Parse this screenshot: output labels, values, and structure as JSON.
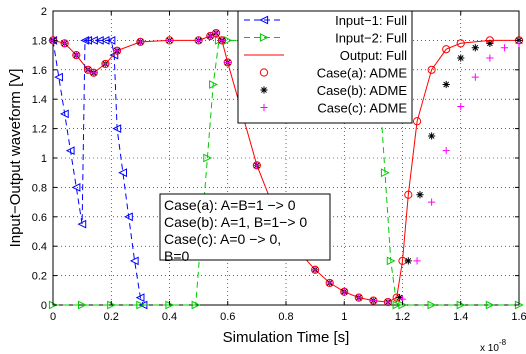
{
  "chart_data": {
    "type": "line",
    "xlabel": "Simulation Time [s]",
    "ylabel": "Input−Output waveform [V]",
    "x_multiplier": "x 10",
    "x_multiplier_exp": "-8",
    "xlim": [
      0,
      1.6
    ],
    "ylim": [
      0,
      2
    ],
    "grid": true,
    "xticks": [
      0,
      0.2,
      0.4,
      0.6,
      0.8,
      1,
      1.2,
      1.4,
      1.6
    ],
    "xtick_labels": [
      "0",
      "0.2",
      "0.4",
      "0.6",
      "0.8",
      "1",
      "1.2",
      "1.4",
      "1.6"
    ],
    "yticks": [
      0,
      0.2,
      0.4,
      0.6,
      0.8,
      1,
      1.2,
      1.4,
      1.6,
      1.8,
      2
    ],
    "ytick_labels": [
      "0",
      "0.2",
      "0.4",
      "0.6",
      "0.8",
      "1",
      "1.2",
      "1.4",
      "1.6",
      "1.8",
      "2"
    ],
    "legend_position": "top-right",
    "series": [
      {
        "name": "Input−1: Full",
        "color": "#0000ff",
        "style": "dashed",
        "marker": "triangle-left",
        "x": [
          0,
          0.02,
          0.04,
          0.06,
          0.08,
          0.1,
          0.11,
          0.12,
          0.14,
          0.16,
          0.18,
          0.2,
          0.21,
          0.22,
          0.24,
          0.26,
          0.28,
          0.3,
          0.31
        ],
        "y": [
          1.8,
          1.55,
          1.3,
          1.05,
          0.8,
          0.55,
          1.8,
          1.8,
          1.8,
          1.8,
          1.8,
          1.8,
          1.7,
          1.2,
          0.9,
          0.6,
          0.3,
          0.05,
          0
        ]
      },
      {
        "name": "Input−2: Full",
        "color": "#00cc00",
        "style": "dashed",
        "marker": "triangle-right",
        "x": [
          0,
          0.1,
          0.2,
          0.3,
          0.4,
          0.49,
          0.51,
          0.53,
          0.55,
          0.57,
          0.6,
          0.7,
          0.8,
          0.9,
          1.0,
          1.1,
          1.12,
          1.14,
          1.16,
          1.18,
          1.2,
          1.3,
          1.4,
          1.5,
          1.6
        ],
        "y": [
          0,
          0,
          0,
          0,
          0,
          0,
          0.5,
          1.0,
          1.5,
          1.8,
          1.8,
          1.8,
          1.8,
          1.8,
          1.8,
          1.8,
          1.5,
          0.9,
          0.3,
          0,
          0,
          0,
          0,
          0,
          0
        ]
      },
      {
        "name": "Output: Full",
        "color": "#ff0000",
        "style": "solid",
        "marker": "none",
        "x": [
          0,
          0.04,
          0.08,
          0.12,
          0.14,
          0.18,
          0.22,
          0.3,
          0.4,
          0.5,
          0.54,
          0.56,
          0.58,
          0.6,
          0.65,
          0.7,
          0.75,
          0.8,
          0.85,
          0.9,
          0.95,
          1.0,
          1.05,
          1.1,
          1.15,
          1.18,
          1.2,
          1.22,
          1.25,
          1.3,
          1.35,
          1.4,
          1.5,
          1.6
        ],
        "y": [
          1.8,
          1.78,
          1.7,
          1.6,
          1.58,
          1.64,
          1.73,
          1.79,
          1.8,
          1.8,
          1.83,
          1.85,
          1.8,
          1.65,
          1.3,
          0.95,
          0.7,
          0.5,
          0.35,
          0.24,
          0.15,
          0.09,
          0.05,
          0.03,
          0.02,
          0.05,
          0.3,
          0.75,
          1.25,
          1.6,
          1.74,
          1.78,
          1.8,
          1.8
        ]
      },
      {
        "name": "Case(a): ADME",
        "color": "#ff0000",
        "style": "none",
        "marker": "circle",
        "x": [
          0,
          0.04,
          0.08,
          0.12,
          0.14,
          0.18,
          0.22,
          0.3,
          0.4,
          0.5,
          0.54,
          0.56,
          0.58,
          0.6,
          0.65,
          0.7,
          0.75,
          0.8,
          0.85,
          0.9,
          0.95,
          1.0,
          1.05,
          1.1,
          1.15,
          1.18,
          1.2,
          1.22,
          1.25,
          1.3,
          1.35,
          1.4,
          1.5,
          1.6
        ],
        "y": [
          1.8,
          1.78,
          1.7,
          1.6,
          1.58,
          1.64,
          1.73,
          1.79,
          1.8,
          1.8,
          1.83,
          1.85,
          1.8,
          1.65,
          1.3,
          0.95,
          0.7,
          0.5,
          0.35,
          0.24,
          0.15,
          0.09,
          0.05,
          0.03,
          0.02,
          0.05,
          0.3,
          0.75,
          1.25,
          1.6,
          1.74,
          1.78,
          1.8,
          1.8
        ]
      },
      {
        "name": "Case(b): ADME",
        "color": "#000000",
        "style": "none",
        "marker": "asterisk",
        "x": [
          0,
          0.04,
          0.08,
          0.12,
          0.14,
          0.18,
          0.22,
          0.3,
          0.4,
          0.5,
          0.54,
          0.56,
          0.58,
          0.6,
          0.65,
          0.7,
          0.75,
          0.8,
          0.85,
          0.9,
          0.95,
          1.0,
          1.05,
          1.1,
          1.15,
          1.19,
          1.22,
          1.26,
          1.3,
          1.35,
          1.4,
          1.45,
          1.5,
          1.6
        ],
        "y": [
          1.8,
          1.78,
          1.7,
          1.6,
          1.58,
          1.64,
          1.73,
          1.79,
          1.8,
          1.8,
          1.83,
          1.85,
          1.8,
          1.65,
          1.3,
          0.95,
          0.7,
          0.5,
          0.35,
          0.24,
          0.15,
          0.09,
          0.05,
          0.03,
          0.02,
          0.05,
          0.3,
          0.75,
          1.15,
          1.5,
          1.68,
          1.75,
          1.78,
          1.8
        ]
      },
      {
        "name": "Case(c): ADME",
        "color": "#ff00ff",
        "style": "none",
        "marker": "plus",
        "x": [
          0,
          0.04,
          0.08,
          0.12,
          0.14,
          0.18,
          0.22,
          0.3,
          0.4,
          0.5,
          0.54,
          0.56,
          0.58,
          0.6,
          0.65,
          0.7,
          0.75,
          0.8,
          0.85,
          0.9,
          0.95,
          1.0,
          1.05,
          1.1,
          1.15,
          1.2,
          1.25,
          1.3,
          1.35,
          1.4,
          1.45,
          1.5,
          1.55,
          1.6
        ],
        "y": [
          1.8,
          1.78,
          1.7,
          1.6,
          1.58,
          1.64,
          1.73,
          1.79,
          1.8,
          1.8,
          1.83,
          1.85,
          1.8,
          1.65,
          1.3,
          0.95,
          0.7,
          0.5,
          0.35,
          0.24,
          0.15,
          0.09,
          0.05,
          0.03,
          0.02,
          0.04,
          0.3,
          0.7,
          1.05,
          1.35,
          1.55,
          1.68,
          1.75,
          1.78
        ]
      }
    ],
    "annotation": {
      "lines": [
        "Case(a):  A=B=1 −> 0",
        "Case(b): A=1, B=1−> 0",
        "Case(c): A=0 −> 0,",
        "B=0"
      ]
    }
  }
}
